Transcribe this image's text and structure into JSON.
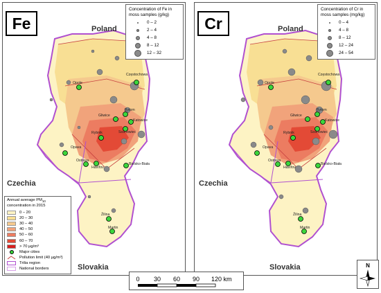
{
  "panels": [
    {
      "element": "Fe",
      "legend": {
        "title": "Concentration of Fe in moss samples (g/kg)",
        "classes": [
          "0 – 2",
          "2 – 4",
          "4 – 8",
          "8 – 12",
          "12 – 32"
        ]
      }
    },
    {
      "element": "Cr",
      "legend": {
        "title": "Concentration of Cr in moss samples (mg/kg)",
        "classes": [
          "0 – 4",
          "4 – 8",
          "8 – 12",
          "12 – 24",
          "24 – 54"
        ]
      }
    }
  ],
  "countries": {
    "poland": "Poland",
    "czechia": "Czechia",
    "slovakia": "Slovakia"
  },
  "cities": [
    "Częstochowa",
    "Opole",
    "Bytom",
    "Gliwice",
    "Katowice",
    "Rybnik",
    "Sosnowiec",
    "Ostrava",
    "Opava",
    "Havířov",
    "Bielsko-Biała",
    "Žilina",
    "Martin"
  ],
  "pm_legend": {
    "title": "Annual average PM",
    "title_sub": "10",
    "title_line2": "concentration in 2015",
    "classes": [
      {
        "label": "0 – 20",
        "color": "#fdf3c4"
      },
      {
        "label": "20 – 30",
        "color": "#f8df94"
      },
      {
        "label": "30 – 40",
        "color": "#f5c98e"
      },
      {
        "label": "40 – 50",
        "color": "#f1a37b"
      },
      {
        "label": "50 – 60",
        "color": "#ec7c61"
      },
      {
        "label": "60 – 70",
        "color": "#e34a36"
      },
      {
        "label": "> 70 µg/m³",
        "color": "#d71f1f"
      }
    ],
    "symbols": [
      {
        "label": "Major cities",
        "kind": "city"
      },
      {
        "label": "Pollution limit (40 µg/m³)",
        "kind": "limit"
      },
      {
        "label": "Trilia region",
        "kind": "region"
      },
      {
        "label": "National borders",
        "kind": "border"
      }
    ]
  },
  "scale": {
    "ticks": [
      "0",
      "30",
      "60",
      "90",
      "120 km"
    ]
  },
  "compass": {
    "label": "N"
  }
}
